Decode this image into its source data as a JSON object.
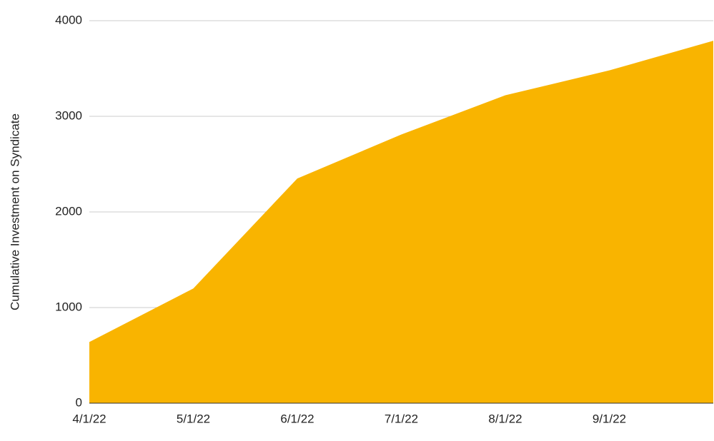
{
  "chart_data": {
    "type": "area",
    "y_label": "Cumulative Investment on Syndicate",
    "categories": [
      "4/1/22",
      "5/1/22",
      "6/1/22",
      "7/1/22",
      "8/1/22",
      "9/1/22",
      null
    ],
    "values": [
      640,
      1200,
      2350,
      2810,
      3220,
      3480,
      3790
    ],
    "color": "#f9b400",
    "ylim": [
      0,
      4000
    ],
    "yticks": [
      0,
      1000,
      2000,
      3000,
      4000
    ],
    "grid": true
  }
}
